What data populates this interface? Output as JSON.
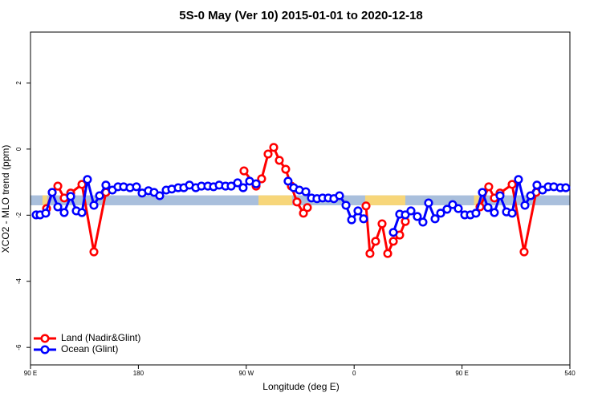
{
  "chart_data": {
    "type": "line",
    "title": "5S-0 May (Ver 10)   2015-01-01 to 2020-12-18",
    "x_label": "Longitude (deg E)",
    "y_label": "XCO2 - MLO trend (ppm)",
    "xlim": [
      90,
      540
    ],
    "ylim": [
      -6.53,
      3.54
    ],
    "xticks": [
      {
        "value": 90,
        "label": "90 E"
      },
      180,
      {
        "value": 270,
        "label": "90 W"
      },
      {
        "value": 360,
        "label": "0"
      },
      {
        "value": 450,
        "label": "90 E"
      },
      540
    ],
    "yticks": [
      2,
      0,
      -2,
      -4,
      -6
    ],
    "legend": "bottom-left",
    "band": {
      "ylim": [
        -1.7,
        -1.4
      ],
      "color": "#a9bfdc",
      "highlights": [
        {
          "x": [
            100,
            104
          ],
          "color": "#f7d67a"
        },
        {
          "x": [
            280.2,
            308.3
          ],
          "color": "#f7d67a"
        },
        {
          "x": [
            369.2,
            402.7
          ],
          "color": "#f7d67a"
        },
        {
          "x": [
            460,
            464
          ],
          "color": "#f7d67a"
        }
      ]
    },
    "series": [
      {
        "name": "Land (Nadir&Glint)",
        "color": "#ff0000",
        "x": [
          103.4,
          108.1,
          112.8,
          118.1,
          123.5,
          132.9,
          142.9,
          152.9,
          200,
          268.1,
          278.2,
          282.8,
          288.2,
          292.9,
          297.6,
          302.9,
          307.6,
          312.3,
          317.7,
          321.0,
          340,
          369.9,
          373.2,
          377.9,
          383.3,
          388.0,
          392.7,
          398.0,
          402.7,
          430,
          465.0,
          472.3,
          477.0,
          481.7,
          491.8,
          501.8,
          511.8
        ],
        "values": [
          -1.8,
          -1.31,
          -1.12,
          -1.48,
          -1.33,
          -1.07,
          -3.11,
          -1.31,
          null,
          -0.66,
          -1.12,
          -0.9,
          -0.15,
          0.05,
          -0.34,
          -0.61,
          -1.12,
          -1.6,
          -1.94,
          -1.77,
          null,
          -1.72,
          -3.16,
          -2.79,
          -2.26,
          -3.16,
          -2.79,
          -2.6,
          -2.19,
          null,
          -1.75,
          -1.14,
          -1.48,
          -1.33,
          -1.07,
          -3.11,
          -1.31
        ]
      },
      {
        "name": "Ocean (Glint)",
        "color": "#0000ff",
        "x": [
          94.7,
          98.0,
          102.7,
          108.1,
          112.8,
          118.1,
          123.5,
          128.2,
          132.9,
          137.5,
          142.9,
          147.6,
          152.9,
          158.3,
          163.0,
          167.7,
          173.0,
          178.4,
          183.1,
          188.4,
          193.1,
          197.8,
          203.2,
          207.9,
          213.2,
          217.9,
          222.6,
          227.9,
          232.6,
          238.0,
          242.7,
          247.4,
          252.7,
          257.4,
          262.8,
          267.4,
          272.8,
          278.2,
          300,
          304.9,
          309.6,
          314.3,
          319.7,
          324.4,
          329.0,
          333.7,
          338.4,
          343.1,
          347.8,
          353.2,
          357.9,
          363.2,
          367.9,
          380,
          392.7,
          398.0,
          402.7,
          407.4,
          412.7,
          417.4,
          422.1,
          427.5,
          432.2,
          437.5,
          442.2,
          446.9,
          452.3,
          457.0,
          461.6,
          467.0,
          471.7,
          477.0,
          481.7,
          487.1,
          491.8,
          497.1,
          502.5,
          507.2,
          512.5,
          517.2,
          521.9,
          526.6,
          532.0,
          536.6
        ],
        "values": [
          -1.99,
          -1.99,
          -1.94,
          -1.31,
          -1.75,
          -1.92,
          -1.43,
          -1.87,
          -1.92,
          -0.92,
          -1.7,
          -1.41,
          -1.09,
          -1.24,
          -1.14,
          -1.14,
          -1.17,
          -1.14,
          -1.33,
          -1.26,
          -1.31,
          -1.41,
          -1.24,
          -1.21,
          -1.17,
          -1.17,
          -1.09,
          -1.17,
          -1.12,
          -1.12,
          -1.14,
          -1.09,
          -1.12,
          -1.12,
          -1.02,
          -1.17,
          -0.97,
          -1.05,
          null,
          -0.97,
          -1.17,
          -1.24,
          -1.29,
          -1.48,
          -1.5,
          -1.48,
          -1.48,
          -1.5,
          -1.41,
          -1.7,
          -2.14,
          -1.87,
          -2.11,
          null,
          -2.52,
          -1.97,
          -1.99,
          -1.87,
          -2.04,
          -2.21,
          -1.63,
          -2.11,
          -1.94,
          -1.82,
          -1.68,
          -1.8,
          -1.99,
          -1.99,
          -1.94,
          -1.31,
          -1.77,
          -1.92,
          -1.41,
          -1.9,
          -1.94,
          -0.92,
          -1.7,
          -1.41,
          -1.09,
          -1.24,
          -1.14,
          -1.14,
          -1.17,
          -1.17
        ]
      }
    ]
  }
}
